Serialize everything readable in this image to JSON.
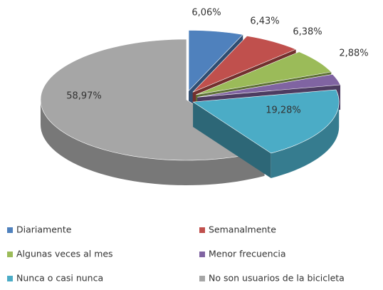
{
  "chart_data": {
    "type": "pie3d",
    "categories": [
      "Diariamente",
      "Semanalmente",
      "Algunas veces al mes",
      "Menor frecuencia",
      "Nunca o casi nunca",
      "No son usuarios de la bicicleta"
    ],
    "values": [
      6.06,
      6.43,
      6.38,
      2.88,
      19.28,
      58.97
    ],
    "value_labels": [
      "6,06%",
      "6,43%",
      "6,38%",
      "2,88%",
      "19,28%",
      "58,97%"
    ],
    "colors": [
      "#4f81bd",
      "#c0504d",
      "#9bbb59",
      "#8064a2",
      "#4bacc6",
      "#a6a6a6"
    ],
    "legend": "bottom"
  }
}
